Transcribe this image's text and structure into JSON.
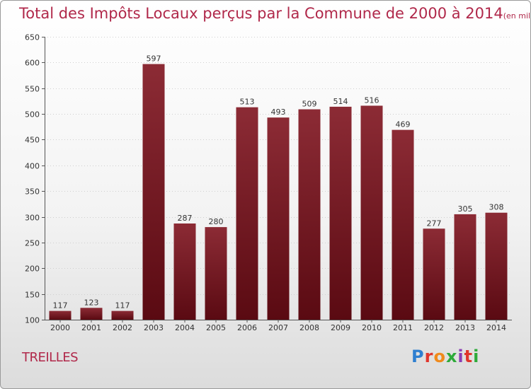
{
  "title": "Total des Impôts Locaux perçus par la Commune de 2000 à 2014",
  "unit": "(en milliers d'€)",
  "commune": "TREILLES",
  "brand": "Proxiti",
  "colors": {
    "title": "#b0284a",
    "bar_top": "#8c2b35",
    "bar_bottom": "#5a0a12"
  },
  "chart_data": {
    "type": "bar",
    "title": "Total des Impôts Locaux perçus par la Commune de 2000 à 2014",
    "xlabel": "",
    "ylabel": "",
    "categories": [
      "2000",
      "2001",
      "2002",
      "2003",
      "2004",
      "2005",
      "2006",
      "2007",
      "2008",
      "2009",
      "2010",
      "2011",
      "2012",
      "2013",
      "2014"
    ],
    "values": [
      117,
      123,
      117,
      597,
      287,
      280,
      513,
      493,
      509,
      514,
      516,
      469,
      277,
      305,
      308
    ],
    "ylim": [
      100,
      650
    ],
    "yticks": [
      100,
      150,
      200,
      250,
      300,
      350,
      400,
      450,
      500,
      550,
      600,
      650
    ],
    "grid": true
  }
}
